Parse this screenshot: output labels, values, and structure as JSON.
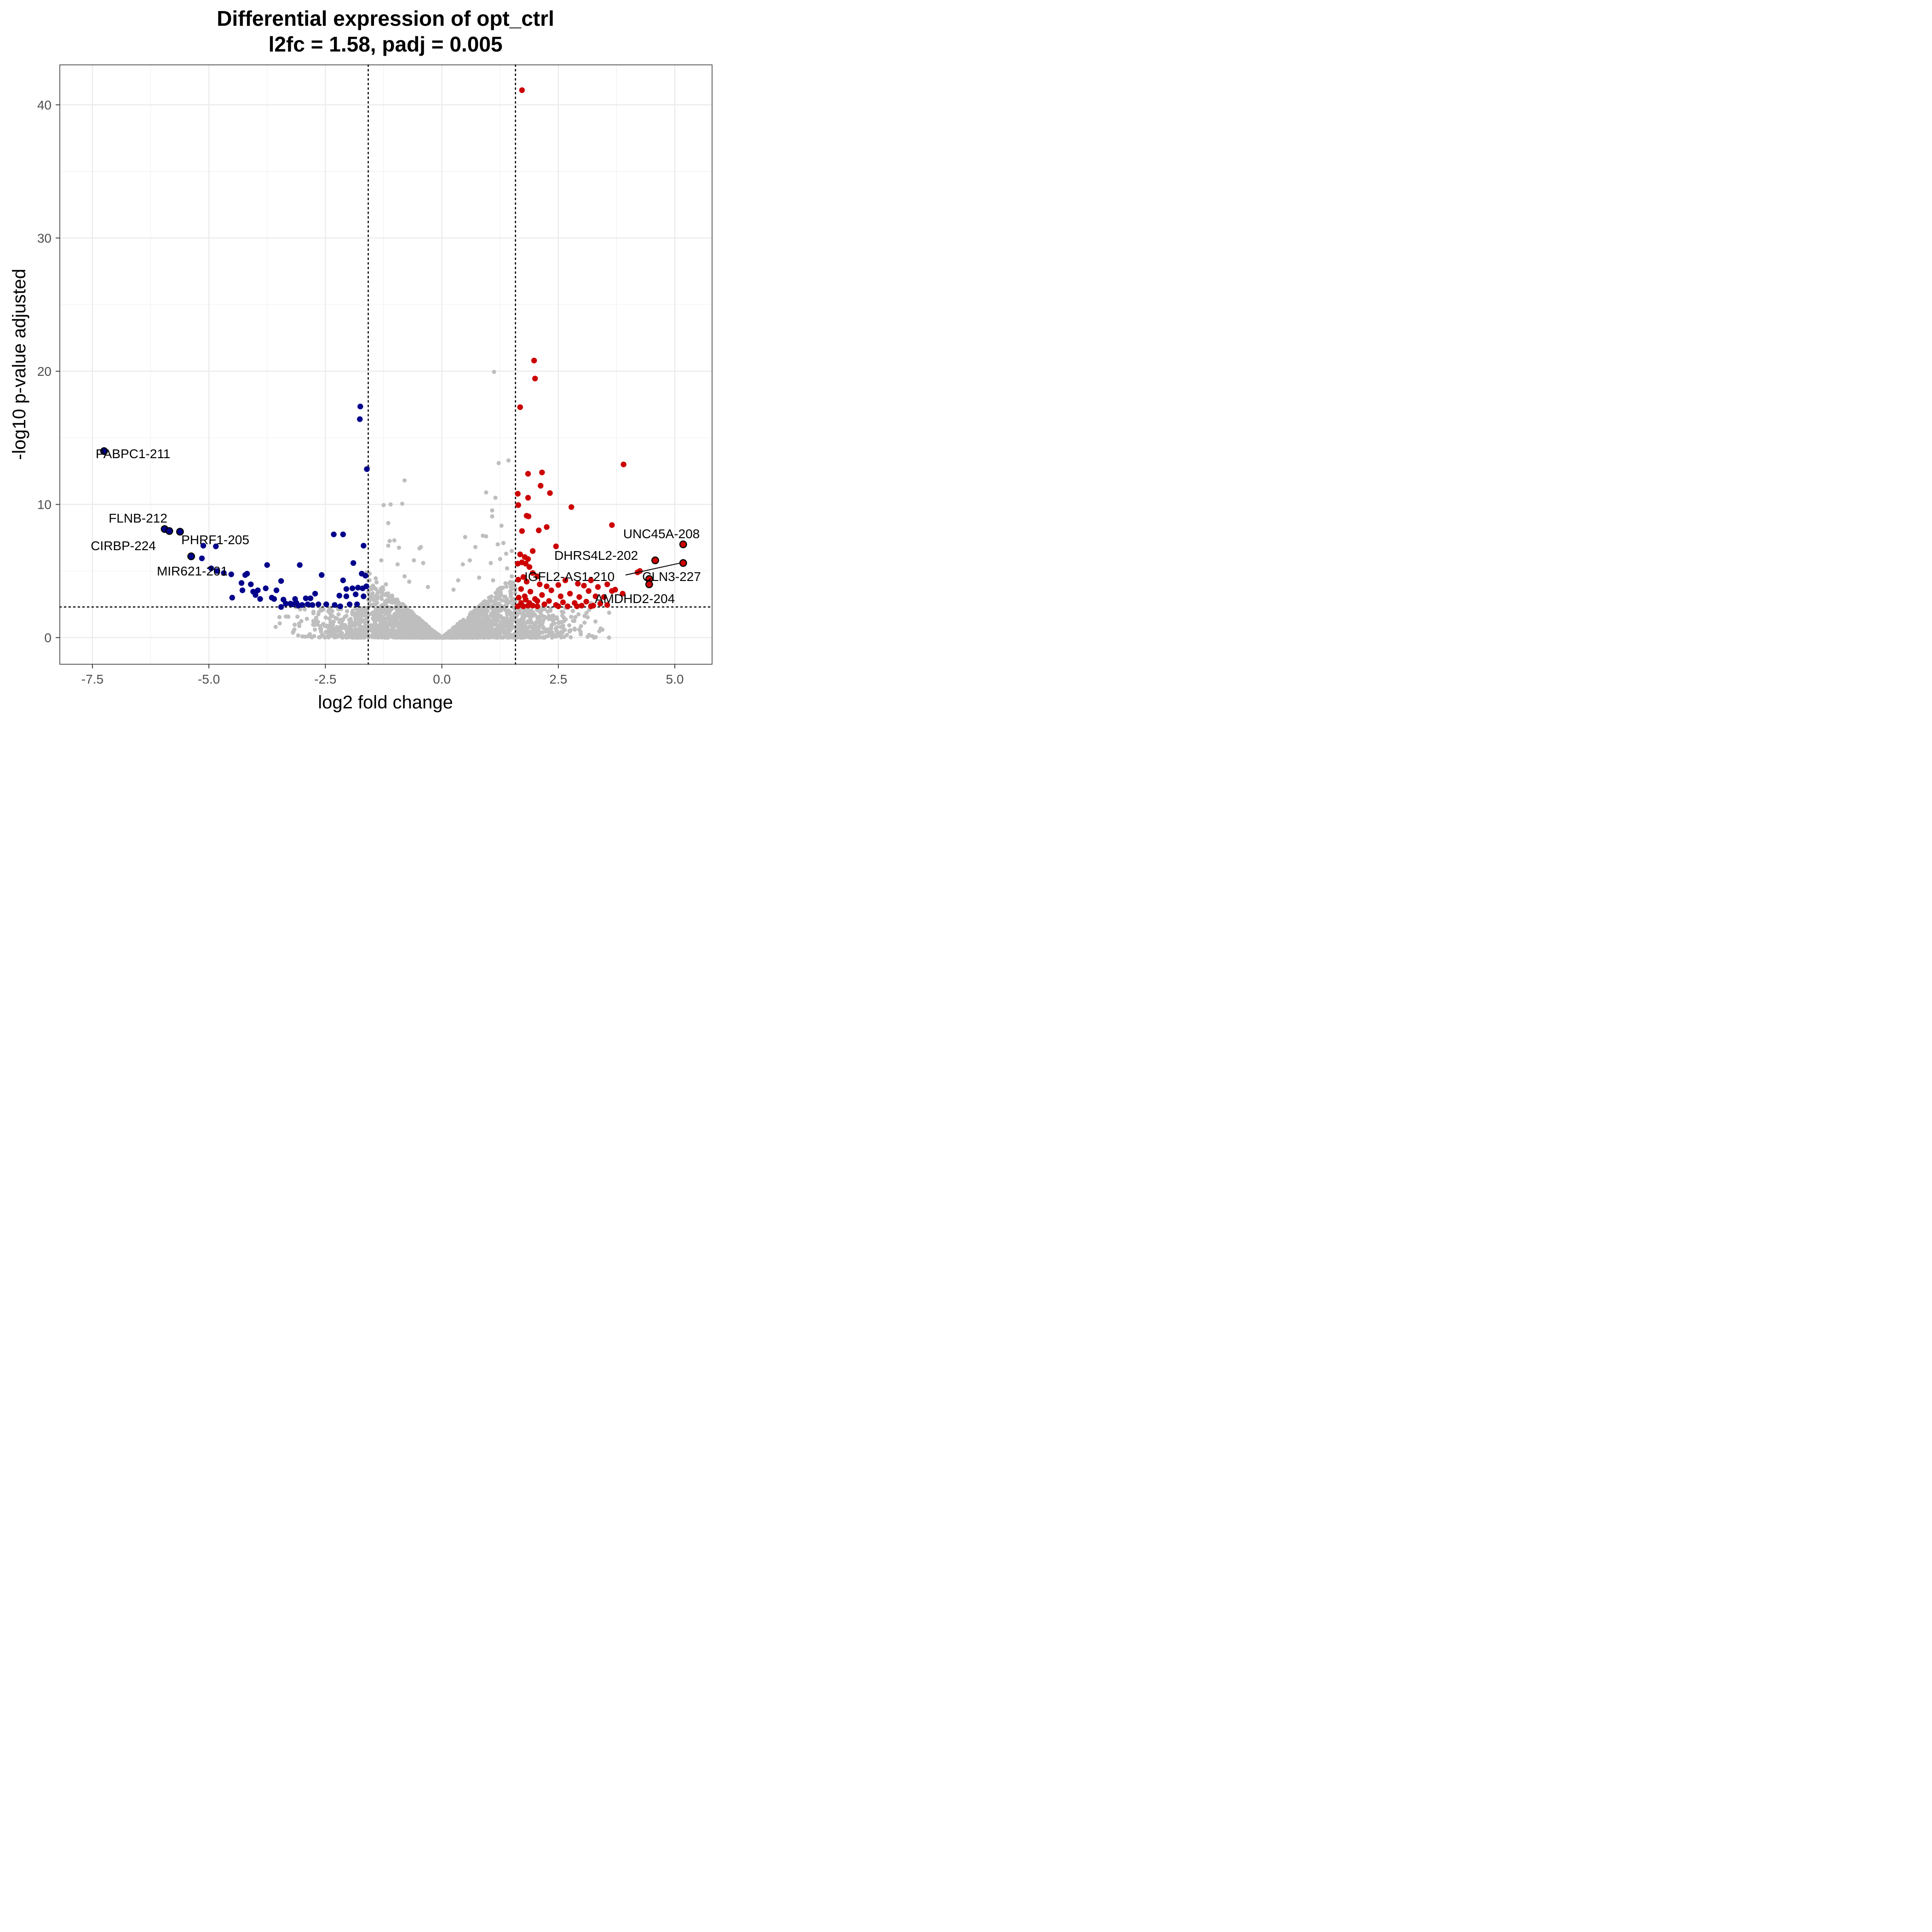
{
  "chart_data": {
    "type": "scatter",
    "title_line1": "Differential expression of opt_ctrl",
    "title_line2": "l2fc = 1.58, padj = 0.005",
    "xlabel": "log2 fold change",
    "ylabel": "-log10 p-value adjusted",
    "xlim": [
      -8.2,
      5.8
    ],
    "ylim": [
      -2.0,
      43.0
    ],
    "x_ticks": [
      -7.5,
      -5.0,
      -2.5,
      0.0,
      2.5,
      5.0
    ],
    "x_tick_labels": [
      "-7.5",
      "-5.0",
      "-2.5",
      "0.0",
      "2.5",
      "5.0"
    ],
    "y_ticks": [
      0,
      10,
      20,
      30,
      40
    ],
    "y_tick_labels": [
      "0",
      "10",
      "20",
      "30",
      "40"
    ],
    "thresholds": {
      "l2fc": 1.58,
      "padj": 0.005,
      "neg_log10_padj": 2.3
    },
    "grid": true,
    "colors": {
      "up": "#cc0000",
      "down": "#00008b",
      "ns": "#bebebe",
      "highlight_edge": "#000000"
    },
    "series": [
      {
        "key": "down",
        "points": [
          [
            -7.25,
            14.0
          ],
          [
            -5.95,
            8.15
          ],
          [
            -5.85,
            8.0
          ],
          [
            -5.62,
            7.95
          ],
          [
            -5.38,
            6.1
          ],
          [
            -5.15,
            5.95
          ],
          [
            -5.12,
            6.9
          ],
          [
            -4.85,
            6.85
          ],
          [
            -4.95,
            5.2
          ],
          [
            -4.82,
            5.0
          ],
          [
            -4.68,
            4.85
          ],
          [
            -4.52,
            4.75
          ],
          [
            -4.5,
            3.0
          ],
          [
            -4.3,
            4.1
          ],
          [
            -4.28,
            3.55
          ],
          [
            -4.22,
            4.7
          ],
          [
            -4.18,
            4.8
          ],
          [
            -4.1,
            4.0
          ],
          [
            -4.05,
            3.45
          ],
          [
            -4.0,
            3.2
          ],
          [
            -3.95,
            3.55
          ],
          [
            -3.9,
            2.9
          ],
          [
            -3.78,
            3.7
          ],
          [
            -3.75,
            5.45
          ],
          [
            -3.65,
            3.0
          ],
          [
            -3.6,
            2.9
          ],
          [
            -3.55,
            3.55
          ],
          [
            -3.45,
            4.25
          ],
          [
            -3.45,
            2.3
          ],
          [
            -3.4,
            2.85
          ],
          [
            -3.35,
            2.55
          ],
          [
            -3.25,
            2.55
          ],
          [
            -3.2,
            2.5
          ],
          [
            -3.15,
            2.9
          ],
          [
            -3.12,
            2.6
          ],
          [
            -3.08,
            2.4
          ],
          [
            -3.05,
            5.45
          ],
          [
            -3.0,
            2.45
          ],
          [
            -2.92,
            2.95
          ],
          [
            -2.88,
            2.5
          ],
          [
            -2.82,
            2.95
          ],
          [
            -2.78,
            2.45
          ],
          [
            -2.72,
            3.3
          ],
          [
            -2.65,
            2.5
          ],
          [
            -2.58,
            4.7
          ],
          [
            -2.48,
            2.5
          ],
          [
            -2.32,
            7.75
          ],
          [
            -2.3,
            2.45
          ],
          [
            -2.2,
            3.15
          ],
          [
            -2.18,
            2.35
          ],
          [
            -2.12,
            7.75
          ],
          [
            -2.12,
            4.3
          ],
          [
            -2.05,
            3.65
          ],
          [
            -2.05,
            3.1
          ],
          [
            -1.98,
            2.5
          ],
          [
            -1.92,
            3.7
          ],
          [
            -1.9,
            5.6
          ],
          [
            -1.85,
            3.25
          ],
          [
            -1.82,
            2.5
          ],
          [
            -1.8,
            3.75
          ],
          [
            -1.75,
            17.35
          ],
          [
            -1.76,
            16.4
          ],
          [
            -1.72,
            4.8
          ],
          [
            -1.7,
            3.7
          ],
          [
            -1.68,
            6.9
          ],
          [
            -1.68,
            3.1
          ],
          [
            -1.64,
            4.65
          ],
          [
            -1.62,
            3.85
          ],
          [
            -1.61,
            12.65
          ]
        ]
      },
      {
        "key": "up",
        "points": [
          [
            1.72,
            41.1
          ],
          [
            1.98,
            20.8
          ],
          [
            2.0,
            19.45
          ],
          [
            1.68,
            17.3
          ],
          [
            3.9,
            13.0
          ],
          [
            1.85,
            12.3
          ],
          [
            2.15,
            12.4
          ],
          [
            2.12,
            11.4
          ],
          [
            1.63,
            10.8
          ],
          [
            1.85,
            10.5
          ],
          [
            2.32,
            10.85
          ],
          [
            1.64,
            9.95
          ],
          [
            2.78,
            9.8
          ],
          [
            1.82,
            9.15
          ],
          [
            1.86,
            9.1
          ],
          [
            3.65,
            8.45
          ],
          [
            2.25,
            8.3
          ],
          [
            1.72,
            8.0
          ],
          [
            2.08,
            8.05
          ],
          [
            2.45,
            6.85
          ],
          [
            1.95,
            6.5
          ],
          [
            1.68,
            6.25
          ],
          [
            1.78,
            6.05
          ],
          [
            1.85,
            5.9
          ],
          [
            1.72,
            5.65
          ],
          [
            1.8,
            5.55
          ],
          [
            1.63,
            5.55
          ],
          [
            1.88,
            5.3
          ],
          [
            1.95,
            4.85
          ],
          [
            2.05,
            4.6
          ],
          [
            1.75,
            4.55
          ],
          [
            1.64,
            4.35
          ],
          [
            1.82,
            4.2
          ],
          [
            2.1,
            4.0
          ],
          [
            2.25,
            3.85
          ],
          [
            2.5,
            3.95
          ],
          [
            2.65,
            4.3
          ],
          [
            2.92,
            4.05
          ],
          [
            3.05,
            3.9
          ],
          [
            3.2,
            4.3
          ],
          [
            3.35,
            3.8
          ],
          [
            3.55,
            4.0
          ],
          [
            3.72,
            3.6
          ],
          [
            3.88,
            3.3
          ],
          [
            4.2,
            4.9
          ],
          [
            4.25,
            5.0
          ],
          [
            1.7,
            3.65
          ],
          [
            1.78,
            3.1
          ],
          [
            1.9,
            3.45
          ],
          [
            2.0,
            2.9
          ],
          [
            2.15,
            3.2
          ],
          [
            2.35,
            3.55
          ],
          [
            2.55,
            3.1
          ],
          [
            2.75,
            3.3
          ],
          [
            2.95,
            3.05
          ],
          [
            3.15,
            3.5
          ],
          [
            3.3,
            3.1
          ],
          [
            3.48,
            3.05
          ],
          [
            3.65,
            3.5
          ],
          [
            1.65,
            3.0
          ],
          [
            1.7,
            2.6
          ],
          [
            1.8,
            2.85
          ],
          [
            1.88,
            2.6
          ],
          [
            1.95,
            2.4
          ],
          [
            2.05,
            2.75
          ],
          [
            2.2,
            2.5
          ],
          [
            2.3,
            2.75
          ],
          [
            2.45,
            2.45
          ],
          [
            2.6,
            2.65
          ],
          [
            2.7,
            2.35
          ],
          [
            2.85,
            2.6
          ],
          [
            3.0,
            2.4
          ],
          [
            3.1,
            2.7
          ],
          [
            3.25,
            2.4
          ],
          [
            3.4,
            2.55
          ],
          [
            3.55,
            2.45
          ],
          [
            1.63,
            2.35
          ],
          [
            1.75,
            2.35
          ],
          [
            1.85,
            2.4
          ],
          [
            2.05,
            2.35
          ],
          [
            2.5,
            2.35
          ],
          [
            2.9,
            2.35
          ],
          [
            3.2,
            2.35
          ]
        ]
      }
    ],
    "highlighted": [
      {
        "gene": "PABPC1-211",
        "x": -7.25,
        "y": 14.0,
        "group": "down"
      },
      {
        "gene": "FLNB-212",
        "x": -5.95,
        "y": 8.15,
        "group": "down"
      },
      {
        "gene": "CIRBP-224",
        "x": -5.85,
        "y": 8.0,
        "group": "down"
      },
      {
        "gene": "PHRF1-205",
        "x": -5.62,
        "y": 7.95,
        "group": "down"
      },
      {
        "gene": "MIR621-201",
        "x": -5.38,
        "y": 6.1,
        "group": "down"
      },
      {
        "gene": "UNC45A-208",
        "x": 5.18,
        "y": 7.0,
        "group": "up"
      },
      {
        "gene": "DHRS4L2-202",
        "x": 4.58,
        "y": 5.8,
        "group": "up"
      },
      {
        "gene": "IGFL2-AS1-210",
        "x": 5.18,
        "y": 5.6,
        "group": "up"
      },
      {
        "gene": "CLN3-227",
        "x": 4.45,
        "y": 4.4,
        "group": "up"
      },
      {
        "gene": "AMDHD2-204",
        "x": 4.45,
        "y": 4.0,
        "group": "up"
      }
    ]
  }
}
